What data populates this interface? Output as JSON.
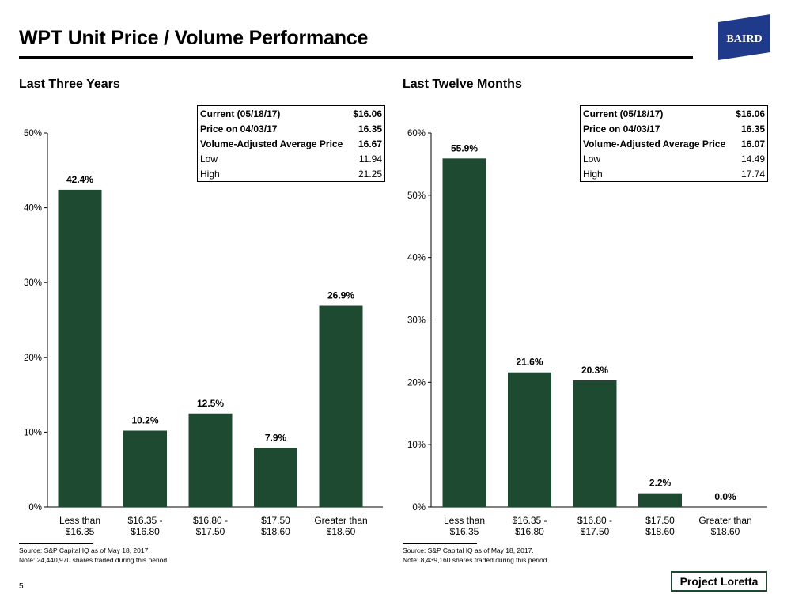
{
  "page": {
    "title": "WPT Unit Price / Volume Performance",
    "logo_text": "BAIRD",
    "page_number": "5",
    "project": "Project Loretta",
    "colors": {
      "bar": "#1f4a32",
      "logo": "#1f3a8a",
      "text": "#000000"
    }
  },
  "left": {
    "heading": "Last Three Years",
    "stats": [
      {
        "label": "Current (05/18/17)",
        "value": "$16.06",
        "bold": true
      },
      {
        "label": "Price on 04/03/17",
        "value": "16.35",
        "bold": true
      },
      {
        "label": "Volume-Adjusted Average Price",
        "value": "16.67",
        "bold": true
      },
      {
        "label": "Low",
        "value": "11.94",
        "bold": false
      },
      {
        "label": "High",
        "value": "21.25",
        "bold": false
      }
    ],
    "source": "Source: S&P Capital IQ as of May 18, 2017.",
    "note": "Note: 24,440,970 shares traded during this period."
  },
  "right": {
    "heading": "Last Twelve Months",
    "stats": [
      {
        "label": "Current (05/18/17)",
        "value": "$16.06",
        "bold": true
      },
      {
        "label": "Price on 04/03/17",
        "value": "16.35",
        "bold": true
      },
      {
        "label": "Volume-Adjusted Average Price",
        "value": "16.07",
        "bold": true
      },
      {
        "label": "Low",
        "value": "14.49",
        "bold": false
      },
      {
        "label": "High",
        "value": "17.74",
        "bold": false
      }
    ],
    "source": "Source: S&P Capital IQ as of May 18, 2017.",
    "note": "Note: 8,439,160 shares traded during this period."
  },
  "chart_data": [
    {
      "type": "bar",
      "title": "Last Three Years",
      "categories": [
        [
          "Less than",
          "$16.35"
        ],
        [
          "$16.35 -",
          "$16.80"
        ],
        [
          "$16.80 -",
          "$17.50"
        ],
        [
          "$17.50",
          "$18.60"
        ],
        [
          "Greater than",
          "$18.60"
        ]
      ],
      "values": [
        42.4,
        10.2,
        12.5,
        7.9,
        26.9
      ],
      "data_labels": [
        "42.4%",
        "10.2%",
        "12.5%",
        "7.9%",
        "26.9%"
      ],
      "ylim": [
        0,
        50
      ],
      "yticks": [
        0,
        10,
        20,
        30,
        40,
        50
      ],
      "ytick_labels": [
        "0%",
        "10%",
        "20%",
        "30%",
        "40%",
        "50%"
      ],
      "xlabel": "",
      "ylabel": "",
      "grid": false
    },
    {
      "type": "bar",
      "title": "Last Twelve Months",
      "categories": [
        [
          "Less than",
          "$16.35"
        ],
        [
          "$16.35 -",
          "$16.80"
        ],
        [
          "$16.80 -",
          "$17.50"
        ],
        [
          "$17.50",
          "$18.60"
        ],
        [
          "Greater than",
          "$18.60"
        ]
      ],
      "values": [
        55.9,
        21.6,
        20.3,
        2.2,
        0.0
      ],
      "data_labels": [
        "55.9%",
        "21.6%",
        "20.3%",
        "2.2%",
        "0.0%"
      ],
      "ylim": [
        0,
        60
      ],
      "yticks": [
        0,
        10,
        20,
        30,
        40,
        50,
        60
      ],
      "ytick_labels": [
        "0%",
        "10%",
        "20%",
        "30%",
        "40%",
        "50%",
        "60%"
      ],
      "xlabel": "",
      "ylabel": "",
      "grid": false
    }
  ]
}
